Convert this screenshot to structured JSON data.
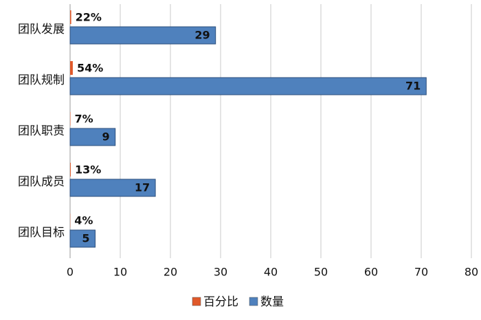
{
  "chart_data": {
    "type": "hbar",
    "categories": [
      "团队发展",
      "团队规制",
      "团队职责",
      "团队成员",
      "团队目标"
    ],
    "series": [
      {
        "name": "百分比",
        "color": "#e0592a",
        "values": [
          0.22,
          0.54,
          0.07,
          0.13,
          0.04
        ],
        "value_labels": [
          "22%",
          "54%",
          "7%",
          "13%",
          "4%"
        ]
      },
      {
        "name": "数量",
        "color": "#4f81bd",
        "values": [
          29,
          71,
          9,
          17,
          5
        ]
      }
    ],
    "xlim": [
      0,
      80
    ],
    "xticks": [
      0,
      10,
      20,
      30,
      40,
      50,
      60,
      70,
      80
    ],
    "grid": true,
    "legend": "bottom"
  }
}
